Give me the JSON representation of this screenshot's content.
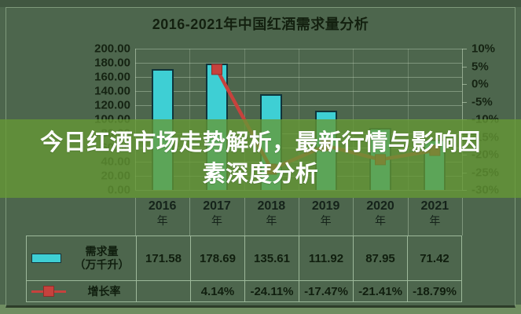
{
  "title": "2016-2021年中国红酒需求量分析",
  "overlay_banner": {
    "line1": "今日红酒市场走势解析，最新行情与影响因",
    "line2": "素深度分析"
  },
  "chart_data": {
    "type": "bar+line combo",
    "title": "2016-2021年中国红酒需求量分析",
    "categories": [
      "2016",
      "2017",
      "2018",
      "2019",
      "2020",
      "2021"
    ],
    "category_suffix": "年",
    "series": [
      {
        "name": "需求量（万千升）",
        "chart": "bar",
        "axis": "left",
        "color": "#3ecfd4",
        "values": [
          171.58,
          178.69,
          135.61,
          111.92,
          87.95,
          71.42
        ]
      },
      {
        "name": "增长率",
        "chart": "line",
        "axis": "right",
        "color": "#c6423d",
        "values": [
          null,
          4.14,
          -24.11,
          -17.47,
          -21.41,
          -18.79
        ],
        "value_format": "percent"
      }
    ],
    "left_axis": {
      "min": 0,
      "max": 200,
      "tick_labels": [
        "200.00",
        "180.00",
        "160.00",
        "140.00",
        "120.00",
        "100.00",
        "80.00",
        "60.00",
        "40.00",
        "20.00",
        "0.00"
      ]
    },
    "right_axis": {
      "min": -30,
      "max": 10,
      "tick_labels": [
        "10%",
        "5%",
        "0%",
        "-5%",
        "-10%",
        "-15%",
        "-20%",
        "-25%",
        "-30%"
      ]
    },
    "gridlines": true,
    "legend_position": "bottom-table"
  },
  "table": {
    "row_demand": {
      "label_line1": "需求量",
      "label_line2": "（万千升）",
      "values": [
        "171.58",
        "178.69",
        "135.61",
        "111.92",
        "87.95",
        "71.42"
      ]
    },
    "row_growth": {
      "label": "增长率",
      "values": [
        "",
        "4.14%",
        "-24.11%",
        "-17.47%",
        "-21.41%",
        "-18.79%"
      ]
    }
  },
  "colors": {
    "background": "#4d664d",
    "bar": "#3ecfd4",
    "line": "#c6423d",
    "overlay_band": "rgba(101,153,53,0.78)",
    "grid": "#b9cdb4"
  }
}
